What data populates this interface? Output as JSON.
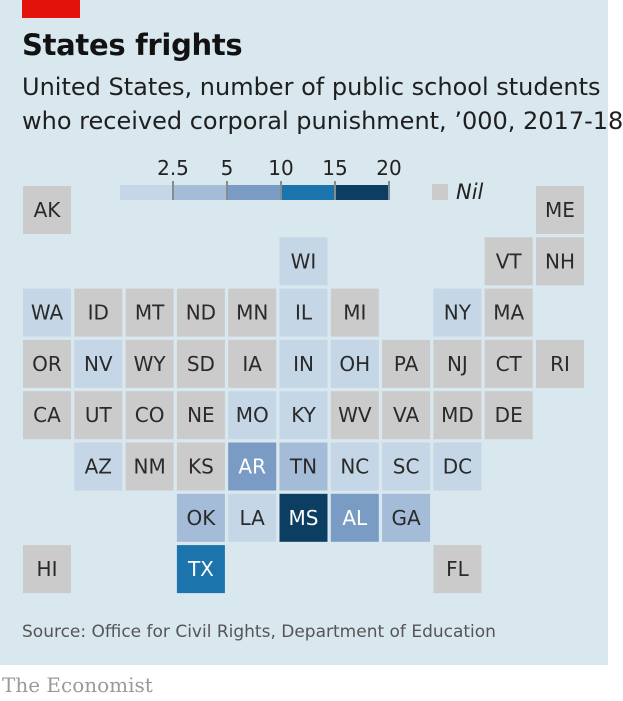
{
  "brand": "The Economist",
  "title": "States frights",
  "subtitle_lines": [
    "United States, number of public school students",
    "who received corporal punishment, ’000, 2017-18"
  ],
  "source": "Source: Office for Civil Rights, Department of Education",
  "chart_data": {
    "type": "heatmap",
    "title": "States frights",
    "subtitle": "United States, number of public school students who received corporal punishment, ’000, 2017-18",
    "legend": {
      "bins": [
        {
          "label": "",
          "upper": 2.5,
          "color": "#c5d6e6"
        },
        {
          "label": "2.5",
          "upper": 5,
          "color": "#a4bcd7"
        },
        {
          "label": "5",
          "upper": 10,
          "color": "#7a9cc4"
        },
        {
          "label": "10",
          "upper": 15,
          "color": "#1b74ab"
        },
        {
          "label": "15",
          "upper": 20,
          "color": "#0c3d63"
        },
        {
          "label": "20",
          "upper": null,
          "color": null
        }
      ],
      "nil_label": "Nil",
      "nil_color": "#cbcbcb"
    },
    "grid": [
      {
        "state": "AK",
        "col": 0,
        "row": 0,
        "bin": "nil"
      },
      {
        "state": "ME",
        "col": 10,
        "row": 0,
        "bin": "nil"
      },
      {
        "state": "WI",
        "col": 5,
        "row": 1,
        "bin": 0
      },
      {
        "state": "VT",
        "col": 9,
        "row": 1,
        "bin": "nil"
      },
      {
        "state": "NH",
        "col": 10,
        "row": 1,
        "bin": "nil"
      },
      {
        "state": "WA",
        "col": 0,
        "row": 2,
        "bin": 0
      },
      {
        "state": "ID",
        "col": 1,
        "row": 2,
        "bin": "nil"
      },
      {
        "state": "MT",
        "col": 2,
        "row": 2,
        "bin": "nil"
      },
      {
        "state": "ND",
        "col": 3,
        "row": 2,
        "bin": "nil"
      },
      {
        "state": "MN",
        "col": 4,
        "row": 2,
        "bin": "nil"
      },
      {
        "state": "IL",
        "col": 5,
        "row": 2,
        "bin": 0
      },
      {
        "state": "MI",
        "col": 6,
        "row": 2,
        "bin": "nil"
      },
      {
        "state": "NY",
        "col": 8,
        "row": 2,
        "bin": 0
      },
      {
        "state": "MA",
        "col": 9,
        "row": 2,
        "bin": "nil"
      },
      {
        "state": "OR",
        "col": 0,
        "row": 3,
        "bin": "nil"
      },
      {
        "state": "NV",
        "col": 1,
        "row": 3,
        "bin": 0
      },
      {
        "state": "WY",
        "col": 2,
        "row": 3,
        "bin": "nil"
      },
      {
        "state": "SD",
        "col": 3,
        "row": 3,
        "bin": "nil"
      },
      {
        "state": "IA",
        "col": 4,
        "row": 3,
        "bin": "nil"
      },
      {
        "state": "IN",
        "col": 5,
        "row": 3,
        "bin": 0
      },
      {
        "state": "OH",
        "col": 6,
        "row": 3,
        "bin": 0
      },
      {
        "state": "PA",
        "col": 7,
        "row": 3,
        "bin": "nil"
      },
      {
        "state": "NJ",
        "col": 8,
        "row": 3,
        "bin": "nil"
      },
      {
        "state": "CT",
        "col": 9,
        "row": 3,
        "bin": "nil"
      },
      {
        "state": "RI",
        "col": 10,
        "row": 3,
        "bin": "nil"
      },
      {
        "state": "CA",
        "col": 0,
        "row": 4,
        "bin": "nil"
      },
      {
        "state": "UT",
        "col": 1,
        "row": 4,
        "bin": "nil"
      },
      {
        "state": "CO",
        "col": 2,
        "row": 4,
        "bin": "nil"
      },
      {
        "state": "NE",
        "col": 3,
        "row": 4,
        "bin": "nil"
      },
      {
        "state": "MO",
        "col": 4,
        "row": 4,
        "bin": 0
      },
      {
        "state": "KY",
        "col": 5,
        "row": 4,
        "bin": 0
      },
      {
        "state": "WV",
        "col": 6,
        "row": 4,
        "bin": "nil"
      },
      {
        "state": "VA",
        "col": 7,
        "row": 4,
        "bin": "nil"
      },
      {
        "state": "MD",
        "col": 8,
        "row": 4,
        "bin": "nil"
      },
      {
        "state": "DE",
        "col": 9,
        "row": 4,
        "bin": "nil"
      },
      {
        "state": "AZ",
        "col": 1,
        "row": 5,
        "bin": 0
      },
      {
        "state": "NM",
        "col": 2,
        "row": 5,
        "bin": "nil"
      },
      {
        "state": "KS",
        "col": 3,
        "row": 5,
        "bin": "nil"
      },
      {
        "state": "AR",
        "col": 4,
        "row": 5,
        "bin": 2
      },
      {
        "state": "TN",
        "col": 5,
        "row": 5,
        "bin": 1
      },
      {
        "state": "NC",
        "col": 6,
        "row": 5,
        "bin": 0
      },
      {
        "state": "SC",
        "col": 7,
        "row": 5,
        "bin": 0
      },
      {
        "state": "DC",
        "col": 8,
        "row": 5,
        "bin": 0
      },
      {
        "state": "OK",
        "col": 3,
        "row": 6,
        "bin": 1
      },
      {
        "state": "LA",
        "col": 4,
        "row": 6,
        "bin": 0
      },
      {
        "state": "MS",
        "col": 5,
        "row": 6,
        "bin": 4
      },
      {
        "state": "AL",
        "col": 6,
        "row": 6,
        "bin": 2
      },
      {
        "state": "GA",
        "col": 7,
        "row": 6,
        "bin": 1
      },
      {
        "state": "HI",
        "col": 0,
        "row": 7,
        "bin": "nil"
      },
      {
        "state": "TX",
        "col": 3,
        "row": 7,
        "bin": 3
      },
      {
        "state": "FL",
        "col": 8,
        "row": 7,
        "bin": "nil"
      }
    ]
  }
}
